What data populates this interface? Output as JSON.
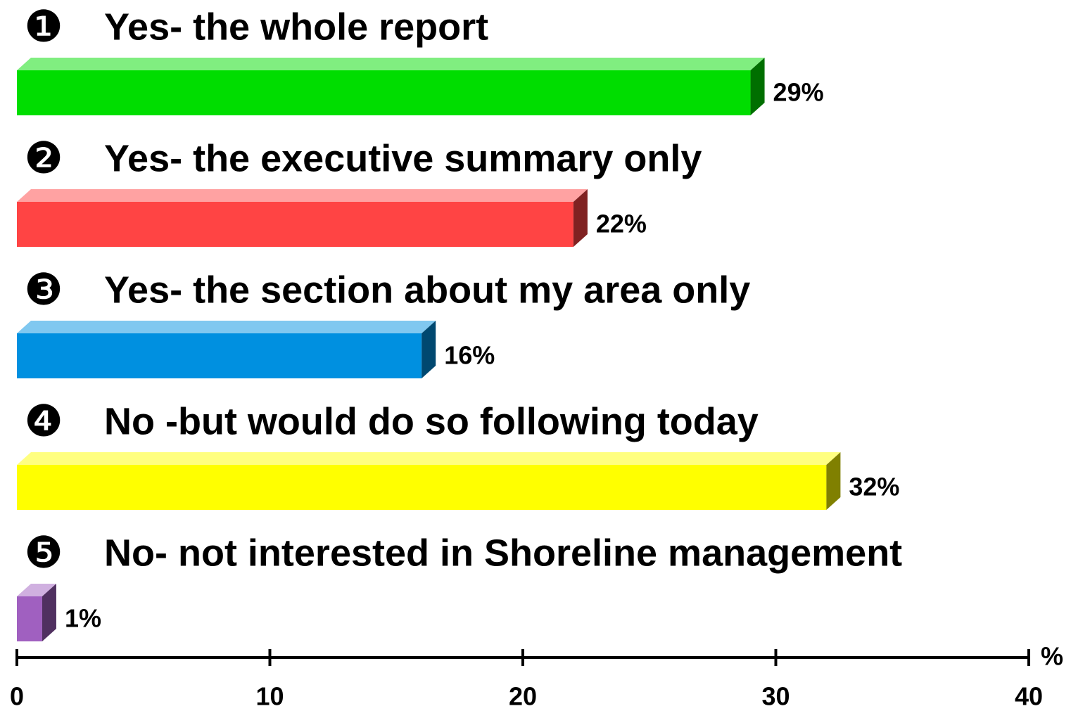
{
  "chart_data": {
    "type": "bar3d",
    "markers": [
      "❶",
      "❷",
      "❸",
      "❹",
      "❺"
    ],
    "categories": [
      "Yes- the whole report",
      "Yes- the executive summary only",
      "Yes- the section about my area only",
      "No -but would do so following today",
      "No- not interested in Shoreline management"
    ],
    "values": [
      29,
      22,
      16,
      32,
      1
    ],
    "value_labels": [
      "29%",
      "22%",
      "16%",
      "32%",
      "1%"
    ],
    "colors": [
      "#00dd00",
      "#ff4444",
      "#0090e0",
      "#ffff00",
      "#a060c0"
    ],
    "xlabel": "%",
    "xlim": [
      0,
      40
    ],
    "xticks": [
      0,
      10,
      20,
      30,
      40
    ]
  }
}
